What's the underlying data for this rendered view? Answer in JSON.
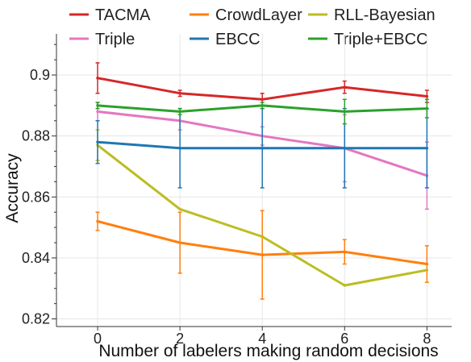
{
  "chart_data": {
    "type": "line",
    "xlabel": "Number of labelers making random decisions",
    "ylabel": "Accuracy",
    "x": [
      0,
      2,
      4,
      6,
      8
    ],
    "xlim": [
      -1,
      8.6
    ],
    "ylim": [
      0.8175,
      0.9135
    ],
    "xticks": [
      "0",
      "2",
      "4",
      "6",
      "8"
    ],
    "yticks": [
      "0.82",
      "0.84",
      "0.86",
      "0.88",
      "0.9"
    ],
    "ytick_values": [
      0.82,
      0.84,
      0.86,
      0.88,
      0.9
    ],
    "grid": true,
    "legend_position": "top",
    "series": [
      {
        "name": "TACMA",
        "color": "#d62728",
        "values": [
          0.899,
          0.894,
          0.892,
          0.896,
          0.893
        ],
        "err": [
          0.005,
          0.001,
          0.002,
          0.002,
          0.002
        ]
      },
      {
        "name": "CrowdLayer",
        "color": "#ff7f0e",
        "values": [
          0.852,
          0.845,
          0.841,
          0.842,
          0.838
        ],
        "err": [
          0.003,
          0.01,
          0.0145,
          0.004,
          0.006
        ]
      },
      {
        "name": "RLL-Bayesian",
        "color": "#bcbd22",
        "values": [
          0.877,
          0.856,
          0.847,
          0.831,
          0.836
        ],
        "err": [
          0.005,
          0.0,
          0.0,
          0.0,
          0.0
        ]
      },
      {
        "name": "Triple",
        "color": "#e377c2",
        "values": [
          0.888,
          0.885,
          0.88,
          0.876,
          0.867
        ],
        "err": [
          0.003,
          0.003,
          0.003,
          0.011,
          0.011
        ]
      },
      {
        "name": "EBCC",
        "color": "#1f77b4",
        "values": [
          0.878,
          0.876,
          0.876,
          0.876,
          0.876
        ],
        "err": [
          0.007,
          0.013,
          0.013,
          0.013,
          0.013
        ]
      },
      {
        "name": "Triple+EBCC",
        "color": "#2ca02c",
        "values": [
          0.89,
          0.888,
          0.89,
          0.888,
          0.889
        ],
        "err": [
          0.001,
          0.001,
          0.001,
          0.004,
          0.003
        ]
      }
    ]
  }
}
